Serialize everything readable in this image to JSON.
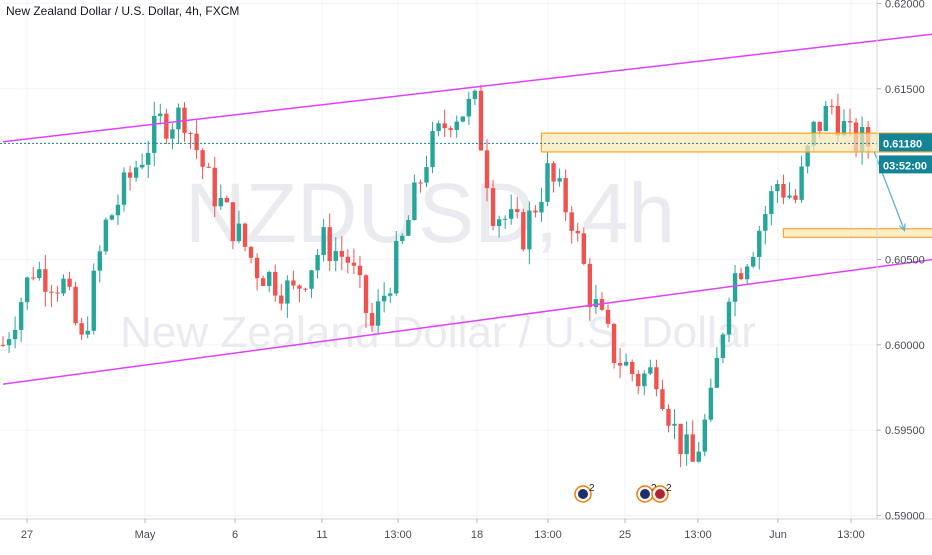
{
  "header": {
    "title": "New Zealand Dollar / U.S. Dollar, 4h, FXCM"
  },
  "watermark": {
    "symbol": "NZDUSD, 4h",
    "name": "New Zealand Dollar / U.S. Dollar"
  },
  "price_tag": {
    "price": "0.61180",
    "countdown": "03:52:00",
    "color": "#138496"
  },
  "colors": {
    "up": "#26a69a",
    "down": "#ef5350",
    "channel": "#e040fb",
    "zone_fill": "#fce7b4",
    "zone_border": "#f5a623",
    "arrow": "#5cb3cc"
  },
  "events": [
    {
      "icon": "nz-flag-icon",
      "count": "2"
    },
    {
      "icon": "nz-flag-icon",
      "count": "2"
    },
    {
      "icon": "us-flag-icon",
      "count": "2"
    }
  ],
  "chart_data": {
    "type": "candlestick",
    "title": "New Zealand Dollar / U.S. Dollar, 4h, FXCM",
    "symbol": "NZDUSD",
    "timeframe": "4h",
    "y_axis": {
      "ticks": [
        "0.62000",
        "0.61500",
        "0.61180",
        "0.60500",
        "0.60000",
        "0.59500",
        "0.59000"
      ],
      "range": [
        0.5898,
        0.6202
      ],
      "side": "right"
    },
    "x_axis": {
      "ticks": [
        "27",
        "May",
        "6",
        "11",
        "13:00",
        "18",
        "13:00",
        "25",
        "13:00",
        "Jun",
        "13:00"
      ]
    },
    "last_price": 0.6118,
    "grid": true,
    "candle_anchors": [
      {
        "i": 0,
        "p": 0.6
      },
      {
        "i": 5,
        "p": 0.6045
      },
      {
        "i": 10,
        "p": 0.6035
      },
      {
        "i": 13,
        "p": 0.6
      },
      {
        "i": 17,
        "p": 0.607
      },
      {
        "i": 22,
        "p": 0.6105
      },
      {
        "i": 26,
        "p": 0.613
      },
      {
        "i": 30,
        "p": 0.6135
      },
      {
        "i": 34,
        "p": 0.6095
      },
      {
        "i": 38,
        "p": 0.607
      },
      {
        "i": 42,
        "p": 0.6045
      },
      {
        "i": 48,
        "p": 0.603
      },
      {
        "i": 53,
        "p": 0.606
      },
      {
        "i": 57,
        "p": 0.605
      },
      {
        "i": 61,
        "p": 0.601
      },
      {
        "i": 66,
        "p": 0.606
      },
      {
        "i": 70,
        "p": 0.611
      },
      {
        "i": 74,
        "p": 0.6135
      },
      {
        "i": 78,
        "p": 0.614
      },
      {
        "i": 81,
        "p": 0.608
      },
      {
        "i": 86,
        "p": 0.6065
      },
      {
        "i": 90,
        "p": 0.61
      },
      {
        "i": 94,
        "p": 0.6075
      },
      {
        "i": 97,
        "p": 0.603
      },
      {
        "i": 101,
        "p": 0.5995
      },
      {
        "i": 105,
        "p": 0.598
      },
      {
        "i": 108,
        "p": 0.5985
      },
      {
        "i": 111,
        "p": 0.595
      },
      {
        "i": 114,
        "p": 0.593
      },
      {
        "i": 117,
        "p": 0.5965
      },
      {
        "i": 120,
        "p": 0.6035
      },
      {
        "i": 124,
        "p": 0.606
      },
      {
        "i": 128,
        "p": 0.6095
      },
      {
        "i": 131,
        "p": 0.6085
      },
      {
        "i": 134,
        "p": 0.6125
      },
      {
        "i": 137,
        "p": 0.614
      },
      {
        "i": 140,
        "p": 0.612
      },
      {
        "i": 143,
        "p": 0.6118
      }
    ],
    "channel_upper": [
      [
        0,
        0.6119
      ],
      [
        200,
        0.6201
      ]
    ],
    "channel_lower": [
      [
        0,
        0.5977
      ],
      [
        200,
        0.6072
      ]
    ],
    "zones": [
      {
        "x0": 89,
        "x1": 157,
        "y0": 0.6113,
        "y1": 0.6124
      },
      {
        "x0": 129,
        "x1": 158,
        "y0": 0.6063,
        "y1": 0.6068
      }
    ],
    "arrow": {
      "from": [
        144,
        0.6113
      ],
      "to": [
        149,
        0.6067
      ]
    }
  }
}
